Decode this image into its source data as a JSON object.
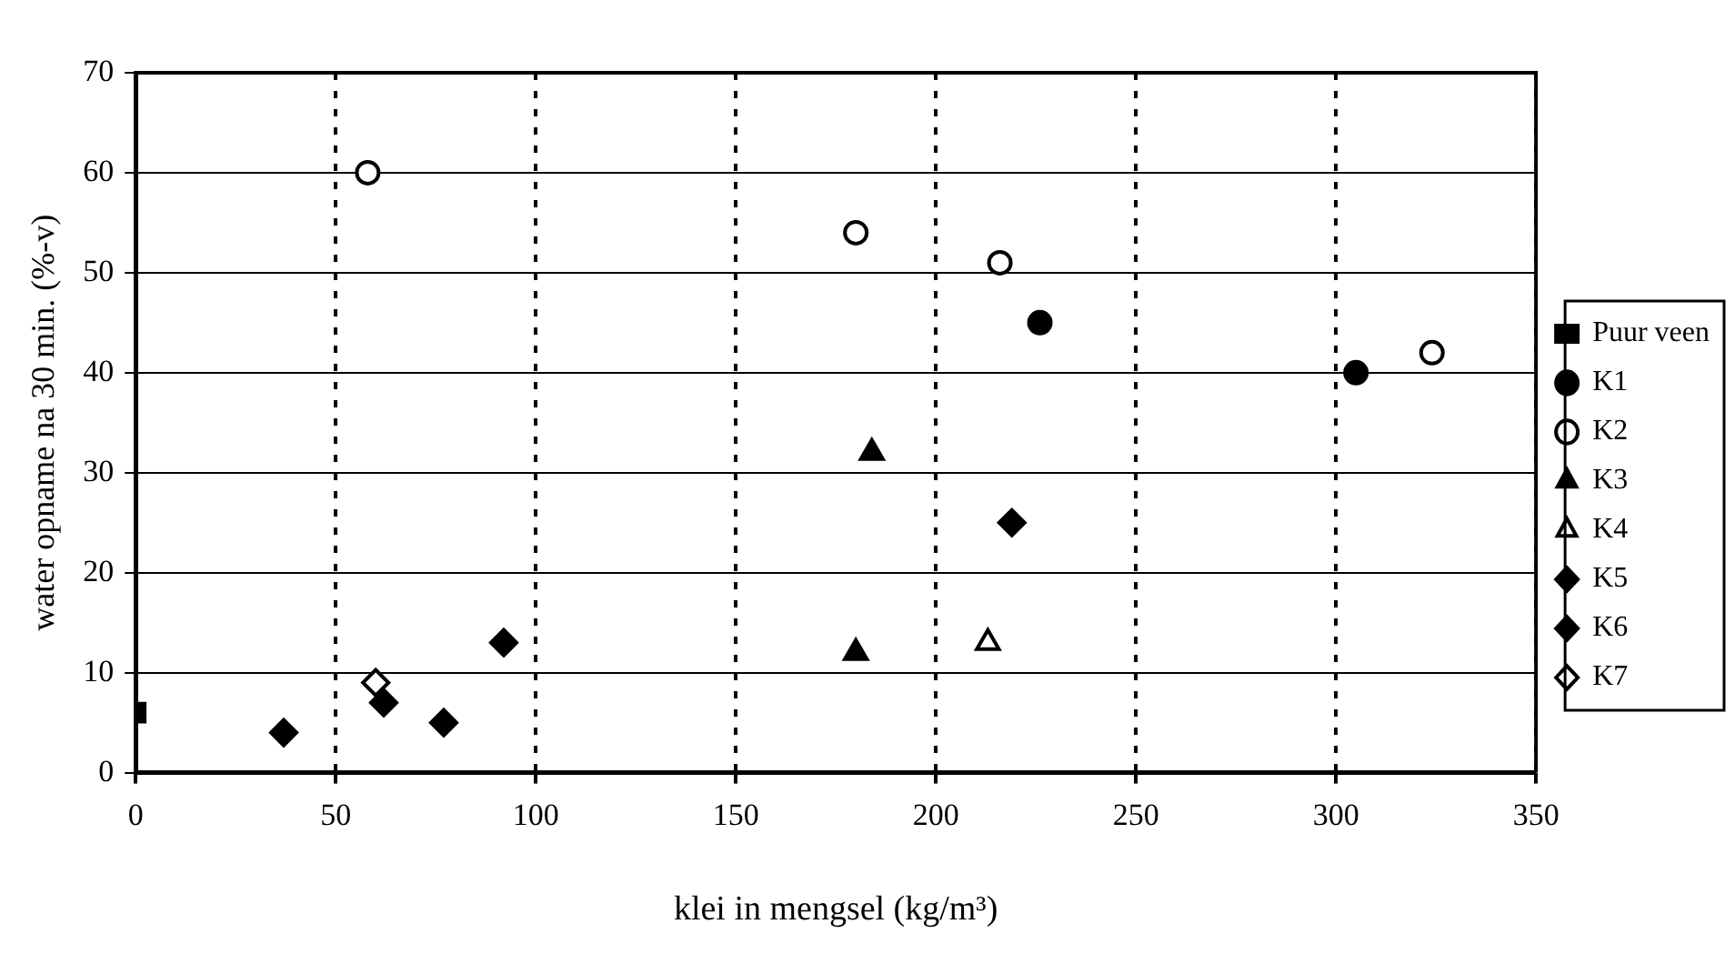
{
  "chart_data": {
    "type": "scatter",
    "xlabel": "klei in mengsel (kg/m³)",
    "ylabel": "water opname na 30 min. (%-v)",
    "xlim": [
      0,
      350
    ],
    "xticks": [
      0,
      50,
      100,
      150,
      200,
      250,
      300,
      350
    ],
    "ylim": [
      0,
      70
    ],
    "yticks": [
      0,
      10,
      20,
      30,
      40,
      50,
      60,
      70
    ],
    "grid": true,
    "legend": "right",
    "series": [
      {
        "name": "Puur veen",
        "color": "#000000",
        "marker": "square",
        "x": [
          0
        ],
        "values": [
          6
        ]
      },
      {
        "name": "K1",
        "color": "#000000",
        "marker": "circle",
        "x": [
          226,
          305
        ],
        "values": [
          45,
          40
        ]
      },
      {
        "name": "K2",
        "color": "#ffffff",
        "marker": "circle",
        "x": [
          58,
          180,
          216,
          324
        ],
        "values": [
          60,
          54,
          51,
          42
        ]
      },
      {
        "name": "K3",
        "color": "#000000",
        "marker": "triangle",
        "x": [
          184,
          180
        ],
        "values": [
          32,
          12
        ]
      },
      {
        "name": "K4",
        "color": "#ffffff",
        "marker": "triangle",
        "x": [
          213
        ],
        "values": [
          13
        ]
      },
      {
        "name": "K5",
        "color": "#000000",
        "marker": "diamond",
        "x": [
          92,
          219
        ],
        "values": [
          13,
          25
        ]
      },
      {
        "name": "K6",
        "color": "#000000",
        "marker": "diamond",
        "x": [
          37,
          62,
          77
        ],
        "values": [
          4,
          7,
          5
        ]
      },
      {
        "name": "K7",
        "color": "#ffffff",
        "marker": "diamond",
        "x": [
          60
        ],
        "values": [
          9
        ]
      }
    ]
  }
}
